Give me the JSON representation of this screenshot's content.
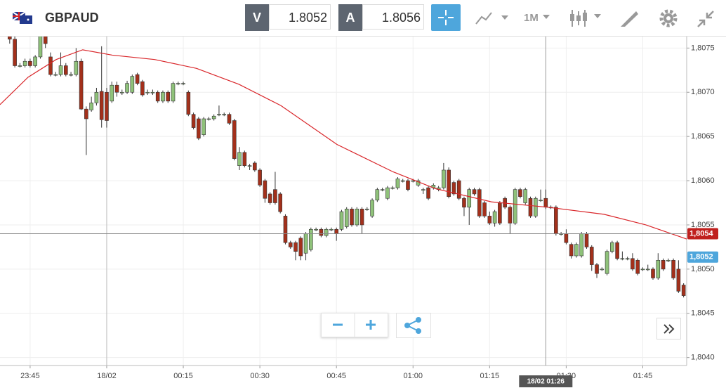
{
  "toolbar": {
    "symbol": "GBPAUD",
    "bid_label": "V",
    "bid": "1.8052",
    "ask_label": "A",
    "ask": "1.8056",
    "interval": "1M"
  },
  "chart_data": {
    "type": "candlestick",
    "xlim": [
      -20.9,
      113.6
    ],
    "ylim": [
      1.80391,
      1.80763
    ],
    "xticks": [
      {
        "value": -15,
        "label": "23:45"
      },
      {
        "value": 0,
        "label": "18/02"
      },
      {
        "value": 15,
        "label": "00:15"
      },
      {
        "value": 30,
        "label": "00:30"
      },
      {
        "value": 45,
        "label": "00:45"
      },
      {
        "value": 60,
        "label": "01:00"
      },
      {
        "value": 75,
        "label": "01:15"
      },
      {
        "value": 90,
        "label": "01:30"
      },
      {
        "value": 105,
        "label": "01:45"
      }
    ],
    "yticks": [
      {
        "value": 1.8075,
        "label": "1,8075"
      },
      {
        "value": 1.807,
        "label": "1,8070"
      },
      {
        "value": 1.8065,
        "label": "1,8065"
      },
      {
        "value": 1.806,
        "label": "1,8060"
      },
      {
        "value": 1.8055,
        "label": "1,8055"
      },
      {
        "value": 1.805,
        "label": "1,8050"
      },
      {
        "value": 1.8045,
        "label": "1,8045"
      },
      {
        "value": 1.804,
        "label": "1,8040"
      }
    ],
    "grid": true,
    "up_color": "#8fc27a",
    "down_color": "#a3301b",
    "x": [
      -19,
      -18,
      -17,
      -16,
      -15,
      -14,
      -13,
      -12,
      -11,
      -10,
      -9,
      -8,
      -7,
      -6,
      -5,
      -4,
      -3,
      -2,
      -1,
      0,
      1,
      2,
      3,
      4,
      5,
      6,
      7,
      8,
      9,
      10,
      11,
      12,
      13,
      14,
      15,
      16,
      17,
      18,
      19,
      20,
      21,
      22,
      23,
      24,
      25,
      26,
      27,
      28,
      29,
      30,
      31,
      32,
      33,
      34,
      35,
      36,
      37,
      38,
      39,
      40,
      41,
      42,
      43,
      44,
      45,
      46,
      47,
      48,
      49,
      50,
      51,
      52,
      53,
      54,
      55,
      56,
      57,
      58,
      59,
      60,
      61,
      62,
      63,
      64,
      65,
      66,
      67,
      68,
      69,
      70,
      71,
      72,
      73,
      74,
      75,
      76,
      77,
      78,
      79,
      80,
      81,
      82,
      83,
      84,
      85,
      86,
      87,
      88,
      89,
      90,
      91,
      92,
      93,
      94,
      95,
      96,
      97,
      98,
      99,
      100,
      101,
      102,
      103,
      104,
      105,
      106,
      107,
      108,
      109,
      110,
      111,
      112,
      113
    ],
    "candles": [
      [
        1.80765,
        1.8077,
        1.80755,
        1.8076
      ],
      [
        1.8076,
        1.80765,
        1.80728,
        1.8073
      ],
      [
        1.8073,
        1.80733,
        1.80728,
        1.8073
      ],
      [
        1.8073,
        1.80738,
        1.80728,
        1.80735
      ],
      [
        1.80735,
        1.80738,
        1.80728,
        1.8073
      ],
      [
        1.8073,
        1.80742,
        1.80728,
        1.8074
      ],
      [
        1.8074,
        1.80768,
        1.80738,
        1.80765
      ],
      [
        1.80765,
        1.80768,
        1.8075,
        1.80755
      ],
      [
        1.8074,
        1.80745,
        1.80718,
        1.8072
      ],
      [
        1.8072,
        1.80723,
        1.80718,
        1.8072
      ],
      [
        1.8072,
        1.80745,
        1.80718,
        1.8073
      ],
      [
        1.8073,
        1.80733,
        1.80718,
        1.8072
      ],
      [
        1.8072,
        1.80723,
        1.80718,
        1.8072
      ],
      [
        1.8072,
        1.8075,
        1.80718,
        1.80735
      ],
      [
        1.80735,
        1.80738,
        1.8068,
        1.80681
      ],
      [
        1.80681,
        1.80684,
        1.80629,
        1.8067
      ],
      [
        1.8068,
        1.80695,
        1.80678,
        1.80688
      ],
      [
        1.80688,
        1.80705,
        1.80685,
        1.807
      ],
      [
        1.80701,
        1.80752,
        1.8066,
        1.80669
      ],
      [
        1.807,
        1.80705,
        1.8066,
        1.80668
      ],
      [
        1.8069,
        1.80712,
        1.80688,
        1.80708
      ],
      [
        1.80708,
        1.80712,
        1.80695,
        1.807
      ],
      [
        1.807,
        1.80703,
        1.80697,
        1.807
      ],
      [
        1.807,
        1.80713,
        1.80698,
        1.8071
      ],
      [
        1.807,
        1.8072,
        1.80698,
        1.80718
      ],
      [
        1.8072,
        1.80722,
        1.80708,
        1.8071
      ],
      [
        1.80712,
        1.80714,
        1.80695,
        1.80697
      ],
      [
        1.807,
        1.80703,
        1.80697,
        1.807
      ],
      [
        1.807,
        1.80703,
        1.80697,
        1.807
      ],
      [
        1.807,
        1.80702,
        1.80688,
        1.8069
      ],
      [
        1.8069,
        1.80702,
        1.80688,
        1.807
      ],
      [
        1.807,
        1.80702,
        1.80688,
        1.8069
      ],
      [
        1.8069,
        1.80712,
        1.80688,
        1.8071
      ],
      [
        1.8071,
        1.80712,
        1.80708,
        1.8071
      ],
      [
        1.8071,
        1.80712,
        1.80708,
        1.8071
      ],
      [
        1.807,
        1.80702,
        1.80673,
        1.80675
      ],
      [
        1.80675,
        1.80677,
        1.80658,
        1.8066
      ],
      [
        1.8067,
        1.80672,
        1.80646,
        1.80648
      ],
      [
        1.80652,
        1.80672,
        1.8065,
        1.8067
      ],
      [
        1.8067,
        1.80672,
        1.80668,
        1.8067
      ],
      [
        1.8067,
        1.80675,
        1.80668,
        1.80673
      ],
      [
        1.80675,
        1.80685,
        1.80673,
        1.80675
      ],
      [
        1.80675,
        1.80677,
        1.80673,
        1.80675
      ],
      [
        1.80675,
        1.80677,
        1.80663,
        1.80665
      ],
      [
        1.80668,
        1.8067,
        1.80623,
        1.80625
      ],
      [
        1.80617,
        1.80638,
        1.80612,
        1.80632
      ],
      [
        1.80632,
        1.80634,
        1.80615,
        1.80617
      ],
      [
        1.80617,
        1.80619,
        1.80612,
        1.80617
      ],
      [
        1.8062,
        1.80622,
        1.8061,
        1.80612
      ],
      [
        1.80612,
        1.80614,
        1.80593,
        1.80595
      ],
      [
        1.806,
        1.80602,
        1.80575,
        1.8058
      ],
      [
        1.80585,
        1.80587,
        1.80573,
        1.80575
      ],
      [
        1.8059,
        1.8061,
        1.80573,
        1.80575
      ],
      [
        1.80585,
        1.80587,
        1.80563,
        1.80565
      ],
      [
        1.8056,
        1.80562,
        1.80528,
        1.8053
      ],
      [
        1.8053,
        1.80532,
        1.80523,
        1.80525
      ],
      [
        1.8053,
        1.80532,
        1.8051,
        1.8052
      ],
      [
        1.80535,
        1.80537,
        1.8051,
        1.80515
      ],
      [
        1.80518,
        1.80542,
        1.8051,
        1.8054
      ],
      [
        1.80522,
        1.80547,
        1.8052,
        1.80545
      ],
      [
        1.80545,
        1.80547,
        1.80543,
        1.80545
      ],
      [
        1.80545,
        1.80547,
        1.80536,
        1.80538
      ],
      [
        1.80538,
        1.80547,
        1.80536,
        1.80545
      ],
      [
        1.80545,
        1.80547,
        1.80543,
        1.80545
      ],
      [
        1.80545,
        1.80547,
        1.80532,
        1.8054
      ],
      [
        1.80545,
        1.80567,
        1.80543,
        1.80565
      ],
      [
        1.80548,
        1.8057,
        1.80546,
        1.80568
      ],
      [
        1.80568,
        1.8057,
        1.80548,
        1.8055
      ],
      [
        1.8055,
        1.8057,
        1.80548,
        1.80568
      ],
      [
        1.80568,
        1.8057,
        1.8054,
        1.8055
      ],
      [
        1.80568,
        1.8057,
        1.80566,
        1.80568
      ],
      [
        1.8056,
        1.8058,
        1.80558,
        1.80578
      ],
      [
        1.80578,
        1.80592,
        1.80576,
        1.8059
      ],
      [
        1.8059,
        1.80592,
        1.80588,
        1.8059
      ],
      [
        1.8058,
        1.80594,
        1.80578,
        1.80592
      ],
      [
        1.80592,
        1.80594,
        1.8059,
        1.80592
      ],
      [
        1.80592,
        1.80604,
        1.8059,
        1.80602
      ],
      [
        1.806,
        1.80602,
        1.80598,
        1.806
      ],
      [
        1.806,
        1.80602,
        1.80588,
        1.8059
      ],
      [
        1.806,
        1.80602,
        1.80598,
        1.806
      ],
      [
        1.80595,
        1.80602,
        1.80593,
        1.806
      ],
      [
        1.8059,
        1.80592,
        1.80585,
        1.8059
      ],
      [
        1.80592,
        1.80594,
        1.80578,
        1.8058
      ],
      [
        1.80592,
        1.80597,
        1.8059,
        1.80595
      ],
      [
        1.8059,
        1.80594,
        1.80588,
        1.80592
      ],
      [
        1.80592,
        1.8062,
        1.8059,
        1.80612
      ],
      [
        1.80612,
        1.80615,
        1.8058,
        1.80582
      ],
      [
        1.80598,
        1.806,
        1.80583,
        1.80585
      ],
      [
        1.806,
        1.80602,
        1.80578,
        1.8058
      ],
      [
        1.8058,
        1.80582,
        1.8056,
        1.8057
      ],
      [
        1.8057,
        1.80592,
        1.8055,
        1.8059
      ],
      [
        1.8059,
        1.80592,
        1.80583,
        1.80585
      ],
      [
        1.8059,
        1.80592,
        1.80558,
        1.8056
      ],
      [
        1.80575,
        1.80577,
        1.80558,
        1.8056
      ],
      [
        1.8056,
        1.80565,
        1.8055,
        1.80552
      ],
      [
        1.80552,
        1.80567,
        1.80548,
        1.80565
      ],
      [
        1.80575,
        1.80577,
        1.8055,
        1.80552
      ],
      [
        1.8058,
        1.80582,
        1.80568,
        1.8057
      ],
      [
        1.8057,
        1.80572,
        1.8054,
        1.80552
      ],
      [
        1.80552,
        1.80592,
        1.8055,
        1.8059
      ],
      [
        1.8059,
        1.80592,
        1.8058,
        1.80582
      ],
      [
        1.80575,
        1.80592,
        1.80573,
        1.8059
      ],
      [
        1.8058,
        1.80582,
        1.80558,
        1.8056
      ],
      [
        1.8056,
        1.80582,
        1.80558,
        1.8058
      ],
      [
        1.80578,
        1.8059,
        1.80576,
        1.80578
      ],
      [
        1.8058,
        1.8059,
        1.80568,
        1.8057
      ],
      [
        1.8057,
        1.80572,
        1.80568,
        1.8057
      ],
      [
        1.8057,
        1.80572,
        1.80538,
        1.8054
      ],
      [
        1.8054,
        1.80542,
        1.80538,
        1.8054
      ],
      [
        1.8054,
        1.80545,
        1.80528,
        1.8053
      ],
      [
        1.80528,
        1.8053,
        1.80512,
        1.80515
      ],
      [
        1.80515,
        1.8053,
        1.80513,
        1.80528
      ],
      [
        1.80515,
        1.80542,
        1.80513,
        1.8054
      ],
      [
        1.8054,
        1.80542,
        1.80523,
        1.80525
      ],
      [
        1.80525,
        1.80527,
        1.80498,
        1.80505
      ],
      [
        1.80505,
        1.80507,
        1.8049,
        1.80495
      ],
      [
        1.805,
        1.80502,
        1.80498,
        1.805
      ],
      [
        1.80495,
        1.80522,
        1.80493,
        1.8052
      ],
      [
        1.8052,
        1.80532,
        1.80518,
        1.8053
      ],
      [
        1.8053,
        1.80532,
        1.8051,
        1.80512
      ],
      [
        1.80512,
        1.8052,
        1.8051,
        1.80512
      ],
      [
        1.80512,
        1.80514,
        1.8051,
        1.80512
      ],
      [
        1.80512,
        1.80518,
        1.80498,
        1.805
      ],
      [
        1.8051,
        1.80512,
        1.80493,
        1.80495
      ],
      [
        1.805,
        1.80502,
        1.80498,
        1.805
      ],
      [
        1.805,
        1.80505,
        1.80498,
        1.805
      ],
      [
        1.805,
        1.80502,
        1.80488,
        1.8049
      ],
      [
        1.8049,
        1.80518,
        1.80488,
        1.8051
      ],
      [
        1.8051,
        1.80512,
        1.80498,
        1.805
      ],
      [
        1.8051,
        1.80512,
        1.80508,
        1.8051
      ],
      [
        1.8051,
        1.80512,
        1.80488,
        1.8049
      ],
      [
        1.805,
        1.8051,
        1.80473,
        1.80475
      ],
      [
        1.80482,
        1.80484,
        1.80468,
        1.8047
      ]
    ],
    "line": {
      "color": "#d9262a",
      "x": [
        -20.9,
        -15.4,
        -9.9,
        -4.7,
        1.1,
        9.4,
        17.6,
        25.9,
        34.1,
        45.1,
        56.1,
        64.4,
        75.4,
        86.4,
        97.4,
        105.6,
        113.6
      ],
      "values": [
        1.80686,
        1.80717,
        1.80737,
        1.80748,
        1.80742,
        1.80737,
        1.80727,
        1.80709,
        1.80685,
        1.80641,
        1.8061,
        1.80591,
        1.80576,
        1.8057,
        1.80562,
        1.8055,
        1.80534
      ]
    },
    "markers": [
      {
        "value": 1.8054,
        "label": "1,8054",
        "color": "#c0201e"
      },
      {
        "value": 1.8052,
        "label": "1,8052",
        "color": "#4ea6dc"
      }
    ],
    "crosshair": {
      "x": 86,
      "label": "18/02 01:26"
    },
    "day_separator": 0
  }
}
